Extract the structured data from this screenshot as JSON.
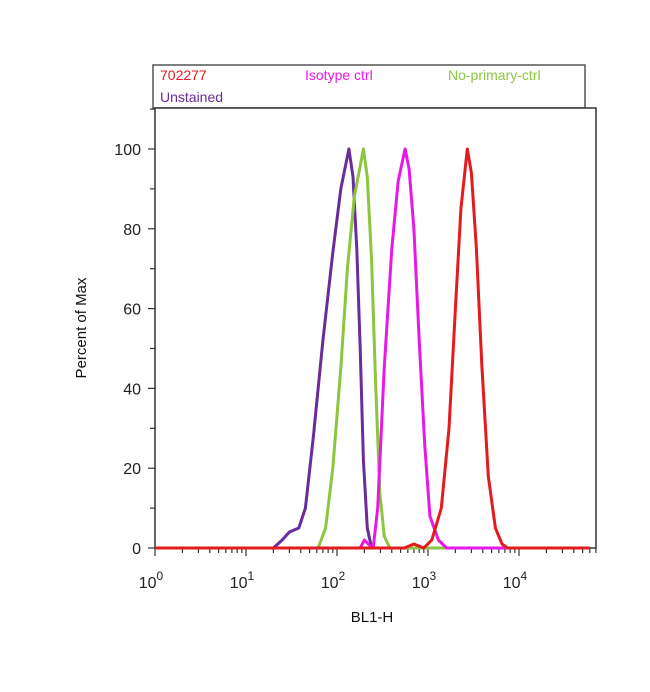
{
  "chart_data": {
    "type": "line",
    "title": "",
    "xlabel": "BL1-H",
    "ylabel": "Percent of Max",
    "xscale": "log",
    "xlim": [
      1,
      70000
    ],
    "ylim": [
      0,
      110
    ],
    "x_tick_labels": [
      {
        "base": "10",
        "exp": "0",
        "value": 1
      },
      {
        "base": "10",
        "exp": "1",
        "value": 10
      },
      {
        "base": "10",
        "exp": "2",
        "value": 100
      },
      {
        "base": "10",
        "exp": "3",
        "value": 1000
      },
      {
        "base": "10",
        "exp": "4",
        "value": 10000
      }
    ],
    "y_ticks": [
      0,
      20,
      40,
      60,
      80,
      100
    ],
    "y_tick_labels": [
      "0",
      "20",
      "40",
      "60",
      "80",
      "100"
    ],
    "grid": false,
    "legend_position": "top",
    "series": [
      {
        "name": "Unstained",
        "color": "#6a2c9a",
        "points": [
          [
            1,
            0
          ],
          [
            20,
            0
          ],
          [
            25,
            2
          ],
          [
            30,
            4
          ],
          [
            38,
            5
          ],
          [
            45,
            10
          ],
          [
            55,
            28
          ],
          [
            70,
            52
          ],
          [
            90,
            74
          ],
          [
            110,
            90
          ],
          [
            135,
            100
          ],
          [
            150,
            93
          ],
          [
            165,
            75
          ],
          [
            180,
            50
          ],
          [
            195,
            22
          ],
          [
            215,
            5
          ],
          [
            240,
            0
          ],
          [
            60000,
            0
          ]
        ]
      },
      {
        "name": "No-primary-ctrl",
        "color": "#8cc63f",
        "points": [
          [
            1,
            0
          ],
          [
            62,
            0
          ],
          [
            75,
            5
          ],
          [
            90,
            20
          ],
          [
            110,
            45
          ],
          [
            130,
            70
          ],
          [
            155,
            88
          ],
          [
            195,
            100
          ],
          [
            215,
            93
          ],
          [
            240,
            72
          ],
          [
            265,
            42
          ],
          [
            295,
            14
          ],
          [
            330,
            3
          ],
          [
            380,
            0
          ],
          [
            60000,
            0
          ]
        ]
      },
      {
        "name": "Isotype ctrl",
        "color": "#e619e6",
        "points": [
          [
            1,
            0
          ],
          [
            180,
            0
          ],
          [
            200,
            2
          ],
          [
            220,
            1
          ],
          [
            250,
            0
          ],
          [
            280,
            10
          ],
          [
            330,
            45
          ],
          [
            400,
            75
          ],
          [
            470,
            92
          ],
          [
            560,
            100
          ],
          [
            620,
            95
          ],
          [
            700,
            80
          ],
          [
            800,
            52
          ],
          [
            920,
            26
          ],
          [
            1050,
            8
          ],
          [
            1300,
            2
          ],
          [
            1600,
            0
          ],
          [
            60000,
            0
          ]
        ]
      },
      {
        "name": "702277",
        "color": "#e41a1c",
        "points": [
          [
            1,
            0
          ],
          [
            550,
            0
          ],
          [
            700,
            1
          ],
          [
            900,
            0
          ],
          [
            1100,
            2
          ],
          [
            1400,
            10
          ],
          [
            1700,
            30
          ],
          [
            2000,
            60
          ],
          [
            2300,
            85
          ],
          [
            2700,
            100
          ],
          [
            3000,
            94
          ],
          [
            3400,
            75
          ],
          [
            3900,
            46
          ],
          [
            4600,
            18
          ],
          [
            5500,
            5
          ],
          [
            6500,
            1
          ],
          [
            7500,
            0
          ],
          [
            60000,
            0
          ]
        ]
      }
    ],
    "legend": [
      {
        "label": "702277",
        "color": "#e41a1c"
      },
      {
        "label": "Isotype ctrl",
        "color": "#e619e6"
      },
      {
        "label": "No-primary-ctrl",
        "color": "#8cc63f"
      },
      {
        "label": "Unstained",
        "color": "#6a2c9a"
      }
    ]
  }
}
